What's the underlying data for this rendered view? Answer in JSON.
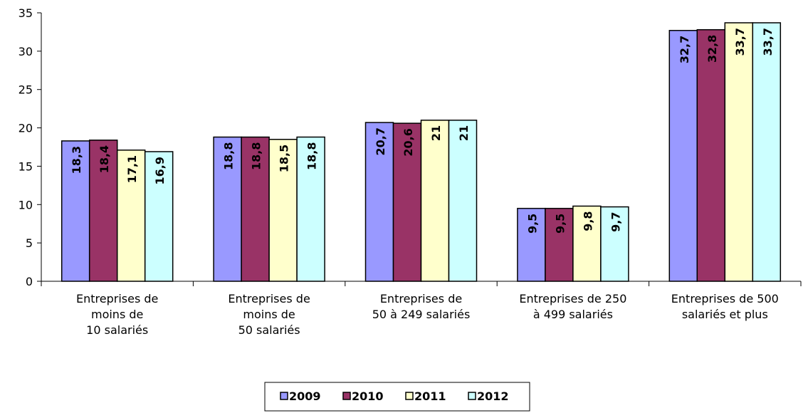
{
  "chart_data": {
    "type": "bar",
    "categories": [
      "Entreprises de\nmoins de\n10 salariés",
      "Entreprises de\nmoins de\n50 salariés",
      "Entreprises de\n50 à 249 salariés",
      "Entreprises de 250\nà 499 salariés",
      "Entreprises de 500\nsalariés et plus"
    ],
    "series": [
      {
        "name": "2009",
        "color": "#9999ff",
        "values": [
          18.3,
          18.8,
          20.7,
          9.5,
          32.7
        ],
        "value_labels": [
          "18,3",
          "18,8",
          "20,7",
          "9,5",
          "32,7"
        ]
      },
      {
        "name": "2010",
        "color": "#993366",
        "values": [
          18.4,
          18.8,
          20.6,
          9.5,
          32.8
        ],
        "value_labels": [
          "18,4",
          "18,8",
          "20,6",
          "9,5",
          "32,8"
        ]
      },
      {
        "name": "2011",
        "color": "#ffffcc",
        "values": [
          17.1,
          18.5,
          21,
          9.8,
          33.7
        ],
        "value_labels": [
          "17,1",
          "18,5",
          "21",
          "9,8",
          "33,7"
        ]
      },
      {
        "name": "2012",
        "color": "#ccffff",
        "values": [
          16.9,
          18.8,
          21,
          9.7,
          33.7
        ],
        "value_labels": [
          "16,9",
          "18,8",
          "21",
          "9,7",
          "33,7"
        ]
      }
    ],
    "ylim": [
      0,
      35
    ],
    "yticks": [
      0,
      5,
      10,
      15,
      20,
      25,
      30,
      35
    ],
    "legend": "bottom"
  }
}
